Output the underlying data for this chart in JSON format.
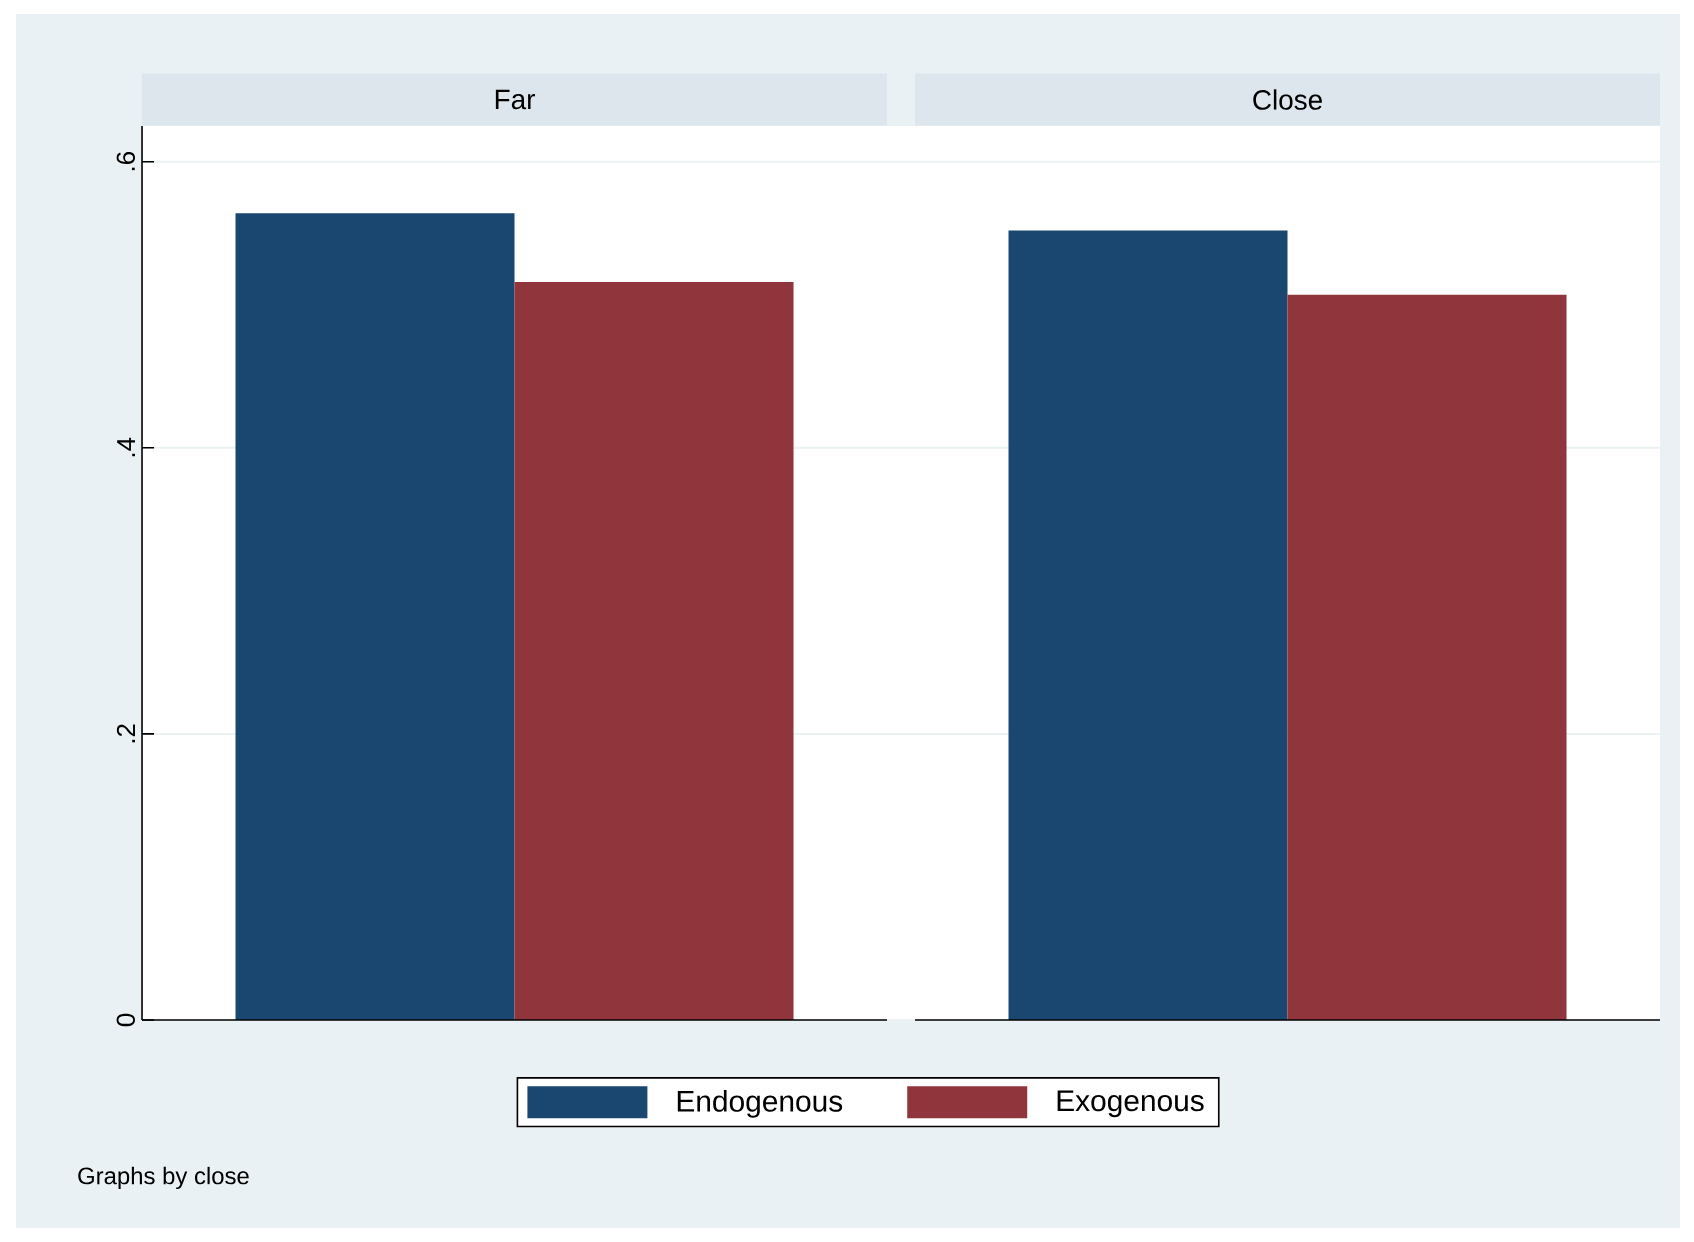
{
  "chart_data": {
    "type": "bar",
    "categories": [
      "Far",
      "Close"
    ],
    "series": [
      {
        "name": "Endogenous",
        "color": "#1a476f",
        "values": [
          0.564,
          0.552
        ]
      },
      {
        "name": "Exogenous",
        "color": "#90353b",
        "values": [
          0.516,
          0.507
        ]
      }
    ],
    "ylim": [
      0,
      0.625
    ],
    "yticks": [
      0,
      {
        "value": 0.2,
        "label": ".2"
      },
      {
        "value": 0.4,
        "label": ".4"
      },
      {
        "value": 0.6,
        "label": ".6"
      }
    ],
    "grid": "y",
    "legend": "bottom",
    "annotations": [
      "Graphs by close"
    ]
  }
}
